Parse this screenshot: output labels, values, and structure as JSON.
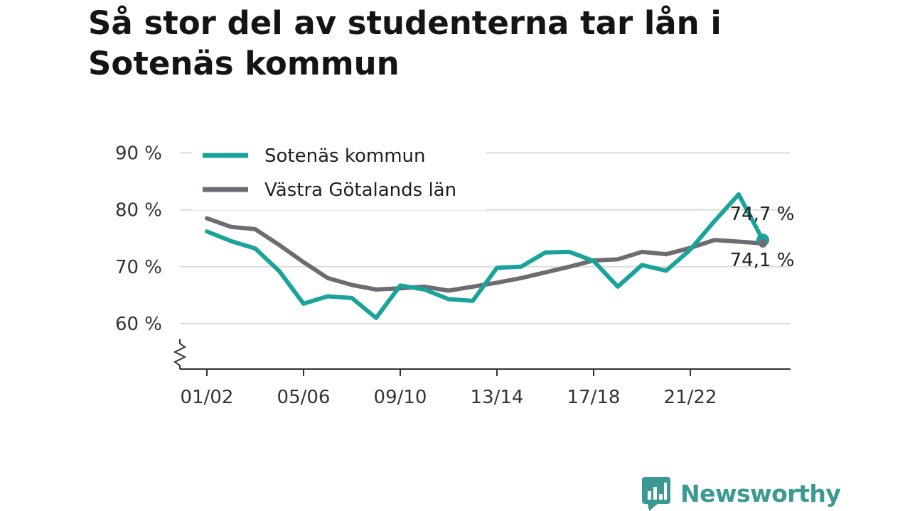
{
  "title": "Så stor del av studenterna tar lån i Sotenäs kommun",
  "brand": {
    "name": "Newsworthy",
    "icon": "newsworthy-logo-icon"
  },
  "colors": {
    "series_primary": "#1aa39b",
    "series_secondary": "#6e6c73",
    "grid": "#dcdcdc",
    "axis": "#333333"
  },
  "chart_data": {
    "type": "line",
    "title": "Så stor del av studenterna tar lån i Sotenäs kommun",
    "xlabel": "",
    "ylabel": "",
    "x": [
      "01/02",
      "02/03",
      "03/04",
      "04/05",
      "05/06",
      "06/07",
      "07/08",
      "08/09",
      "09/10",
      "10/11",
      "11/12",
      "12/13",
      "13/14",
      "14/15",
      "15/16",
      "16/17",
      "17/18",
      "18/19",
      "19/20",
      "20/21",
      "21/22",
      "22/23",
      "23/24",
      "24/25"
    ],
    "x_tick_labels": [
      "01/02",
      "05/06",
      "09/10",
      "13/14",
      "17/18",
      "21/22"
    ],
    "y_ticks": [
      60,
      70,
      80,
      90
    ],
    "y_tick_labels": [
      "60 %",
      "70 %",
      "80 %",
      "90 %"
    ],
    "ylim": [
      52,
      90
    ],
    "y_axis_break": true,
    "grid": true,
    "legend_position": "top-left",
    "series": [
      {
        "name": "Sotenäs kommun",
        "color": "#1aa39b",
        "values": [
          76.2,
          74.5,
          73.2,
          69.2,
          63.5,
          64.8,
          64.5,
          61.0,
          66.7,
          66.0,
          64.3,
          64.0,
          69.8,
          70.0,
          72.5,
          72.6,
          71.0,
          66.5,
          70.3,
          69.3,
          73.0,
          78.0,
          82.7,
          74.7
        ],
        "end_label": "74,7 %"
      },
      {
        "name": "Västra Götalands län",
        "color": "#6e6c73",
        "values": [
          78.5,
          77.0,
          76.6,
          73.8,
          70.8,
          68.0,
          66.8,
          66.0,
          66.2,
          66.5,
          65.8,
          66.5,
          67.2,
          68.0,
          69.0,
          70.0,
          71.1,
          71.3,
          72.6,
          72.2,
          73.3,
          74.7,
          74.4,
          74.1
        ],
        "end_label": "74,1 %"
      }
    ]
  }
}
